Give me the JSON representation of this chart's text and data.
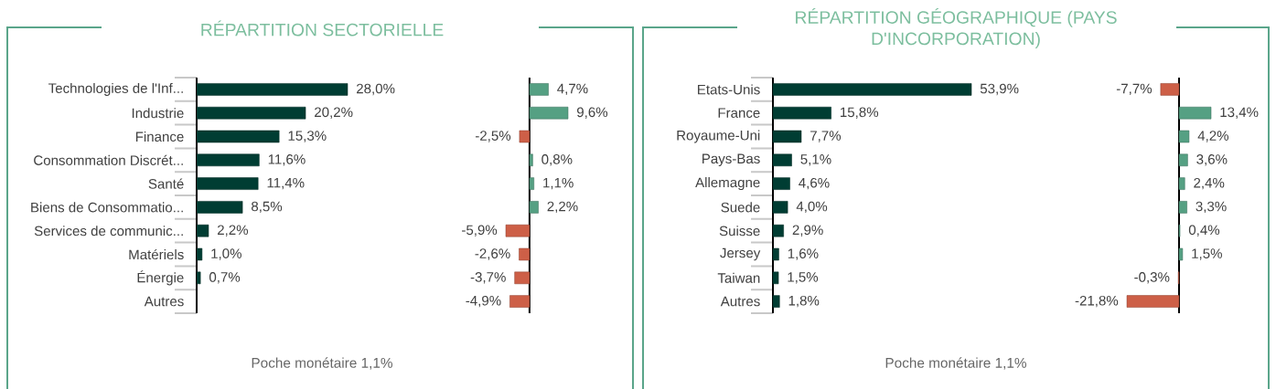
{
  "chart_data": [
    {
      "type": "bar",
      "orientation": "horizontal",
      "title": "RÉPARTITION SECTORIELLE",
      "categories": [
        "Technologies de l'Inf...",
        "Industrie",
        "Finance",
        "Consommation Discrét...",
        "Santé",
        "Biens de Consommatio...",
        "Services de communic...",
        "Matériels",
        "Énergie",
        "Autres"
      ],
      "values": [
        28.0,
        20.2,
        15.3,
        11.6,
        11.4,
        8.5,
        2.2,
        1.0,
        0.7,
        null
      ],
      "value_labels": [
        "28,0%",
        "20,2%",
        "15,3%",
        "11,6%",
        "11,4%",
        "8,5%",
        "2,2%",
        "1,0%",
        "0,7%",
        null
      ],
      "color": "#003d33",
      "annotations": [
        "Poche monétaire 1,1%"
      ]
    },
    {
      "type": "bar",
      "orientation": "horizontal",
      "categories": [
        null,
        null,
        null,
        null,
        null,
        null,
        null,
        null,
        null,
        null
      ],
      "values": [
        4.7,
        9.6,
        -2.5,
        0.8,
        1.1,
        2.2,
        -5.9,
        -2.6,
        -3.7,
        -4.9
      ],
      "value_labels": [
        "4,7%",
        "9,6%",
        "-2,5%",
        "0,8%",
        "1,1%",
        "2,2%",
        "-5,9%",
        "-2,6%",
        "-3,7%",
        "-4,9%"
      ],
      "colors": [
        "#55a083",
        "#55a083",
        "#cd5f47",
        "#55a083",
        "#55a083",
        "#55a083",
        "#cd5f47",
        "#cd5f47",
        "#cd5f47",
        "#cd5f47"
      ]
    },
    {
      "type": "bar",
      "orientation": "horizontal",
      "title": "RÉPARTITION GÉOGRAPHIQUE (PAYS D'INCORPORATION)",
      "categories": [
        "Etats-Unis",
        "France",
        "Royaume-Uni",
        "Pays-Bas",
        "Allemagne",
        "Suede",
        "Suisse",
        "Jersey",
        "Taiwan",
        "Autres"
      ],
      "values": [
        53.9,
        15.8,
        7.7,
        5.1,
        4.6,
        4.0,
        2.9,
        1.6,
        1.5,
        1.8
      ],
      "value_labels": [
        "53,9%",
        "15,8%",
        "7,7%",
        "5,1%",
        "4,6%",
        "4,0%",
        "2,9%",
        "1,6%",
        "1,5%",
        "1,8%"
      ],
      "color": "#003d33",
      "annotations": [
        "Poche monétaire 1,1%"
      ]
    },
    {
      "type": "bar",
      "orientation": "horizontal",
      "categories": [
        null,
        null,
        null,
        null,
        null,
        null,
        null,
        null,
        null,
        null
      ],
      "values": [
        -7.7,
        13.4,
        4.2,
        3.6,
        2.4,
        3.3,
        0.4,
        1.5,
        -0.3,
        -21.8
      ],
      "value_labels": [
        "-7,7%",
        "13,4%",
        "4,2%",
        "3,6%",
        "2,4%",
        "3,3%",
        "0,4%",
        "1,5%",
        "-0,3%",
        "-21,8%"
      ],
      "colors": [
        "#cd5f47",
        "#55a083",
        "#55a083",
        "#55a083",
        "#55a083",
        "#55a083",
        "#55a083",
        "#55a083",
        "#cd5f47",
        "#cd5f47"
      ]
    }
  ]
}
